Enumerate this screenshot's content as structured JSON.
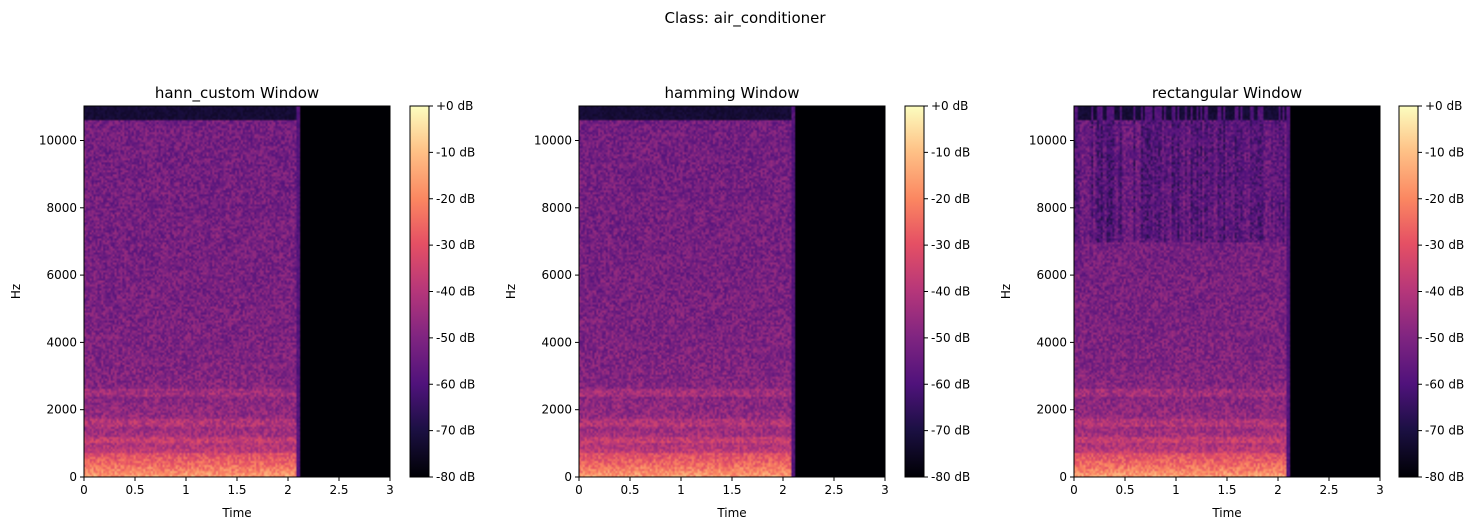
{
  "figure": {
    "suptitle": "Class: air_conditioner"
  },
  "chart_data": [
    {
      "type": "heatmap",
      "title": "hann_custom Window",
      "xlabel": "Time",
      "ylabel": "Hz",
      "xlim": [
        0,
        3
      ],
      "ylim": [
        0,
        11025
      ],
      "xticks": [
        0,
        0.5,
        1,
        1.5,
        2,
        2.5,
        3
      ],
      "xtick_labels": [
        "0",
        "0.5",
        "1",
        "1.5",
        "2",
        "2.5",
        "3"
      ],
      "yticks": [
        0,
        2000,
        4000,
        6000,
        8000,
        10000
      ],
      "ytick_labels": [
        "0",
        "2000",
        "4000",
        "6000",
        "8000",
        "10000"
      ],
      "signal_end_time": 2.08,
      "top_band_cutoff_hz": 10600,
      "colormap": "magma",
      "colorbar": {
        "range": [
          -80,
          0
        ],
        "ticks": [
          0,
          -10,
          -20,
          -30,
          -40,
          -50,
          -60,
          -70,
          -80
        ],
        "labels": [
          "+0 dB",
          "-10 dB",
          "-20 dB",
          "-30 dB",
          "-40 dB",
          "-50 dB",
          "-60 dB",
          "-70 dB",
          "-80 dB"
        ]
      }
    },
    {
      "type": "heatmap",
      "title": "hamming Window",
      "xlabel": "Time",
      "ylabel": "Hz",
      "xlim": [
        0,
        3
      ],
      "ylim": [
        0,
        11025
      ],
      "xticks": [
        0,
        0.5,
        1,
        1.5,
        2,
        2.5,
        3
      ],
      "xtick_labels": [
        "0",
        "0.5",
        "1",
        "1.5",
        "2",
        "2.5",
        "3"
      ],
      "yticks": [
        0,
        2000,
        4000,
        6000,
        8000,
        10000
      ],
      "ytick_labels": [
        "0",
        "2000",
        "4000",
        "6000",
        "8000",
        "10000"
      ],
      "signal_end_time": 2.08,
      "top_band_cutoff_hz": 10600,
      "colormap": "magma",
      "colorbar": {
        "range": [
          -80,
          0
        ],
        "ticks": [
          0,
          -10,
          -20,
          -30,
          -40,
          -50,
          -60,
          -70,
          -80
        ],
        "labels": [
          "+0 dB",
          "-10 dB",
          "-20 dB",
          "-30 dB",
          "-40 dB",
          "-50 dB",
          "-60 dB",
          "-70 dB",
          "-80 dB"
        ]
      }
    },
    {
      "type": "heatmap",
      "title": "rectangular Window",
      "xlabel": "Time",
      "ylabel": "Hz",
      "xlim": [
        0,
        3
      ],
      "ylim": [
        0,
        11025
      ],
      "xticks": [
        0,
        0.5,
        1,
        1.5,
        2,
        2.5,
        3
      ],
      "xtick_labels": [
        "0",
        "0.5",
        "1",
        "1.5",
        "2",
        "2.5",
        "3"
      ],
      "yticks": [
        0,
        2000,
        4000,
        6000,
        8000,
        10000
      ],
      "ytick_labels": [
        "0",
        "2000",
        "4000",
        "6000",
        "8000",
        "10000"
      ],
      "signal_end_time": 2.08,
      "top_band_cutoff_hz": 10600,
      "colormap": "magma",
      "colorbar": {
        "range": [
          -80,
          0
        ],
        "ticks": [
          0,
          -10,
          -20,
          -30,
          -40,
          -50,
          -60,
          -70,
          -80
        ],
        "labels": [
          "+0 dB",
          "-10 dB",
          "-20 dB",
          "-30 dB",
          "-40 dB",
          "-50 dB",
          "-60 dB",
          "-70 dB",
          "-80 dB"
        ]
      }
    }
  ]
}
